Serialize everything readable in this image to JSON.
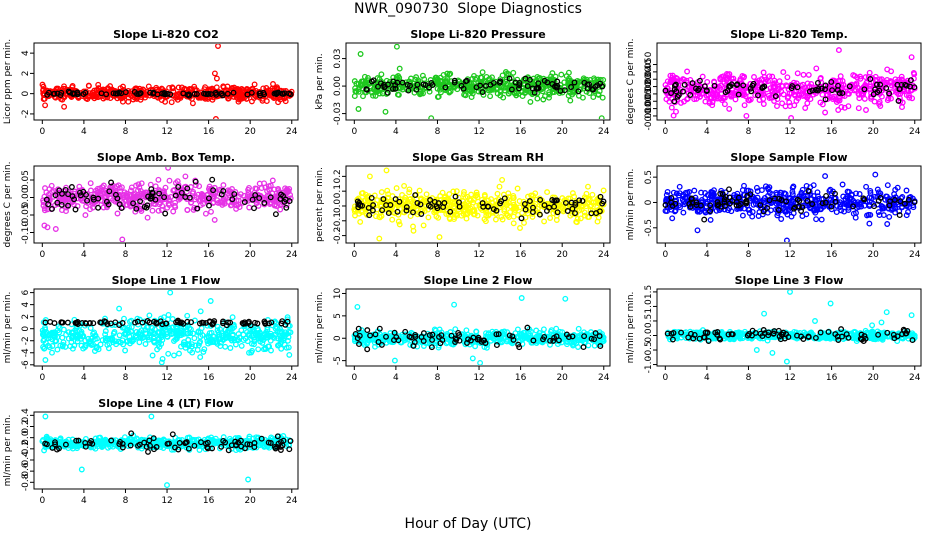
{
  "title": "NWR_090730  Slope Diagnostics",
  "x_axis_label": "Hour of Day (UTC)",
  "colors": {
    "black": "#000000",
    "red": "#ff0000",
    "green": "#1ec81e",
    "magenta": "#ff00ff",
    "yellow": "#ffff00",
    "blue": "#0000ff",
    "cyan": "#00ffff"
  },
  "chart_data": [
    {
      "type": "scatter",
      "title": "Slope Li-820 CO2",
      "ylabel": "Licor ppm per min.",
      "xlim": [
        -0.8,
        24.6
      ],
      "ylim": [
        -2.6,
        5.0
      ],
      "yticks": [
        -2,
        0,
        2,
        4
      ],
      "ytick_labels": [
        "-2",
        "0",
        "2",
        "4"
      ],
      "xticks": [
        0,
        4,
        8,
        12,
        16,
        20,
        24
      ],
      "color": "#ff0000",
      "primary_spread": 0.6,
      "secondary_spread": 0.12,
      "outliers": [
        [
          16.9,
          4.7
        ],
        [
          16.6,
          2.0
        ],
        [
          16.8,
          1.5
        ],
        [
          16.7,
          -2.5
        ],
        [
          2.1,
          -1.3
        ]
      ]
    },
    {
      "type": "scatter",
      "title": "Slope Li-820 Pressure",
      "ylabel": "kPa per min.",
      "xlim": [
        -0.8,
        24.6
      ],
      "ylim": [
        -0.037,
        0.047
      ],
      "yticks": [
        -0.03,
        0.0,
        0.03
      ],
      "ytick_labels": [
        "-0.03",
        "0.00",
        "0.03"
      ],
      "xticks": [
        0,
        4,
        8,
        12,
        16,
        20,
        24
      ],
      "color": "#1ec81e",
      "primary_spread": 0.011,
      "secondary_spread": 0.006,
      "outliers": [
        [
          0.4,
          -0.025
        ],
        [
          4.1,
          0.043
        ],
        [
          7.4,
          -0.035
        ],
        [
          23.8,
          -0.035
        ],
        [
          3.0,
          -0.028
        ],
        [
          0.6,
          0.035
        ]
      ]
    },
    {
      "type": "scatter",
      "title": "Slope Li-820 Temp.",
      "ylabel": "degrees C per min.",
      "xlim": [
        -0.8,
        24.6
      ],
      "ylim": [
        -0.014,
        0.062
      ],
      "yticks": [
        -0.01,
        0.0,
        0.005,
        0.01,
        0.02,
        0.03,
        0.04,
        0.05
      ],
      "ytick_labels": [
        "-0.010",
        "0.000",
        "0.005",
        "0.010",
        "0.020",
        "0.030",
        "0.040",
        "0.050"
      ],
      "ytick_positions": [
        -0.01,
        -0.00275,
        0.0045,
        0.01175,
        0.019,
        0.02625,
        0.0335,
        0.04075
      ],
      "xticks": [
        0,
        4,
        8,
        12,
        16,
        20,
        24
      ],
      "color": "#ff00ff",
      "primary_spread": 0.014,
      "secondary_spread": 0.008,
      "center": 0.016,
      "outliers": [
        [
          12.1,
          -0.012
        ],
        [
          7.8,
          -0.01
        ],
        [
          16.7,
          0.055
        ],
        [
          23.7,
          0.048
        ]
      ]
    },
    {
      "type": "scatter",
      "title": "Slope Amb. Box Temp.",
      "ylabel": "degrees C per min.",
      "xlim": [
        -0.8,
        24.6
      ],
      "ylim": [
        -0.13,
        0.09
      ],
      "yticks": [
        -0.1,
        -0.05,
        0.0,
        0.05
      ],
      "ytick_labels": [
        "-0.10",
        "-0.05",
        "0.00",
        "0.05"
      ],
      "xticks": [
        0,
        4,
        8,
        12,
        16,
        20,
        24
      ],
      "color": "#e632e6",
      "primary_spread": 0.035,
      "secondary_spread": 0.03,
      "outliers": [
        [
          7.7,
          -0.12
        ],
        [
          12.1,
          0.085
        ],
        [
          0.2,
          -0.08
        ],
        [
          0.5,
          -0.085
        ],
        [
          1.3,
          -0.09
        ]
      ]
    },
    {
      "type": "scatter",
      "title": "Slope Gas Stream RH",
      "ylabel": "percent per min.",
      "xlim": [
        -0.8,
        24.6
      ],
      "ylim": [
        -0.25,
        0.27
      ],
      "yticks": [
        -0.2,
        -0.1,
        0.0,
        0.1,
        0.2
      ],
      "ytick_labels": [
        "-0.2",
        "-0.1",
        "0.0",
        "0.1",
        "0.2"
      ],
      "xticks": [
        0,
        4,
        8,
        12,
        16,
        20,
        24
      ],
      "color": "#ffff00",
      "primary_spread": 0.09,
      "secondary_spread": 0.06,
      "outliers": [
        [
          1.5,
          0.2
        ],
        [
          3.1,
          0.24
        ],
        [
          2.4,
          -0.22
        ],
        [
          8.2,
          -0.21
        ]
      ]
    },
    {
      "type": "scatter",
      "title": "Slope Sample Flow",
      "ylabel": "ml/min per min.",
      "xlim": [
        -0.8,
        24.6
      ],
      "ylim": [
        -0.8,
        0.72
      ],
      "yticks": [
        -0.5,
        0.0,
        0.5
      ],
      "ytick_labels": [
        "-0.5",
        "0",
        "0.5"
      ],
      "xticks": [
        0,
        4,
        8,
        12,
        16,
        20,
        24
      ],
      "color": "#0000ff",
      "primary_spread": 0.25,
      "secondary_spread": 0.18,
      "outliers": [
        [
          11.7,
          -0.75
        ],
        [
          3.1,
          -0.55
        ],
        [
          20.2,
          0.55
        ]
      ]
    },
    {
      "type": "scatter",
      "title": "Slope Line 1 Flow",
      "ylabel": "ml/min per min.",
      "xlim": [
        -0.8,
        24.6
      ],
      "ylim": [
        -6.2,
        6.6
      ],
      "yticks": [
        -6,
        -4,
        -2,
        0,
        2,
        4,
        6
      ],
      "ytick_labels": [
        "-6",
        "-4",
        "-2",
        "0",
        "2",
        "4",
        "6"
      ],
      "xticks": [
        0,
        4,
        8,
        12,
        16,
        20,
        24
      ],
      "color": "#00ffff",
      "primary_spread": 2.5,
      "secondary_spread": 0.3,
      "center": -1.2,
      "secondary_center": 1.0,
      "outliers": [
        [
          12.3,
          6.0
        ],
        [
          16.2,
          4.6
        ],
        [
          0.3,
          -5.2
        ],
        [
          11.5,
          -5.6
        ]
      ]
    },
    {
      "type": "scatter",
      "title": "Slope Line 2 Flow",
      "ylabel": "ml/min per min.",
      "xlim": [
        -0.8,
        24.6
      ],
      "ylim": [
        -6.2,
        11.0
      ],
      "yticks": [
        -5,
        0,
        5,
        10
      ],
      "ytick_labels": [
        "-5",
        "0",
        "5",
        "10"
      ],
      "xticks": [
        0,
        4,
        8,
        12,
        16,
        20,
        24
      ],
      "color": "#00ffff",
      "primary_spread": 1.4,
      "secondary_spread": 1.6,
      "outliers": [
        [
          0.3,
          7.0
        ],
        [
          9.6,
          7.5
        ],
        [
          16.1,
          9.0
        ],
        [
          20.3,
          8.8
        ],
        [
          11.4,
          -4.5
        ],
        [
          12.1,
          -5.5
        ],
        [
          3.9,
          -5.0
        ]
      ]
    },
    {
      "type": "scatter",
      "title": "Slope Line 3 Flow",
      "ylabel": "ml/min per min.",
      "xlim": [
        -0.8,
        24.6
      ],
      "ylim": [
        -1.05,
        1.6
      ],
      "yticks": [
        -1.0,
        -0.5,
        0.0,
        0.5,
        1.0,
        1.5
      ],
      "ytick_labels": [
        "-1.0",
        "-0.5",
        "0.0",
        "0.5",
        "1.0",
        "1.5"
      ],
      "xticks": [
        0,
        4,
        8,
        12,
        16,
        20,
        24
      ],
      "color": "#00ffff",
      "primary_spread": 0.12,
      "secondary_spread": 0.15,
      "outliers": [
        [
          12.0,
          1.5
        ],
        [
          15.9,
          1.1
        ],
        [
          9.5,
          0.75
        ],
        [
          11.7,
          -0.9
        ],
        [
          8.8,
          -0.5
        ],
        [
          10.3,
          -0.6
        ],
        [
          19.9,
          0.35
        ],
        [
          20.8,
          0.45
        ],
        [
          21.3,
          0.8
        ],
        [
          23.7,
          0.7
        ],
        [
          14.4,
          0.5
        ]
      ]
    },
    {
      "type": "scatter",
      "title": "Slope Line 4 (LT) Flow",
      "ylabel": "ml/min per min.",
      "xlim": [
        -0.8,
        24.6
      ],
      "ylim": [
        -0.92,
        0.46
      ],
      "yticks": [
        -0.8,
        -0.6,
        -0.4,
        -0.2,
        0.0,
        0.2,
        0.4
      ],
      "ytick_labels": [
        "-0.8",
        "-0.6",
        "-0.4",
        "-0.2",
        "0.0",
        "0.2",
        "0.4"
      ],
      "xticks": [
        0,
        4,
        8,
        12,
        16,
        20,
        24
      ],
      "color": "#00ffff",
      "primary_spread": 0.09,
      "secondary_spread": 0.12,
      "center": -0.1,
      "outliers": [
        [
          12.0,
          -0.85
        ],
        [
          19.8,
          -0.75
        ],
        [
          3.8,
          -0.57
        ],
        [
          10.5,
          0.38
        ],
        [
          0.3,
          0.38
        ]
      ]
    }
  ]
}
